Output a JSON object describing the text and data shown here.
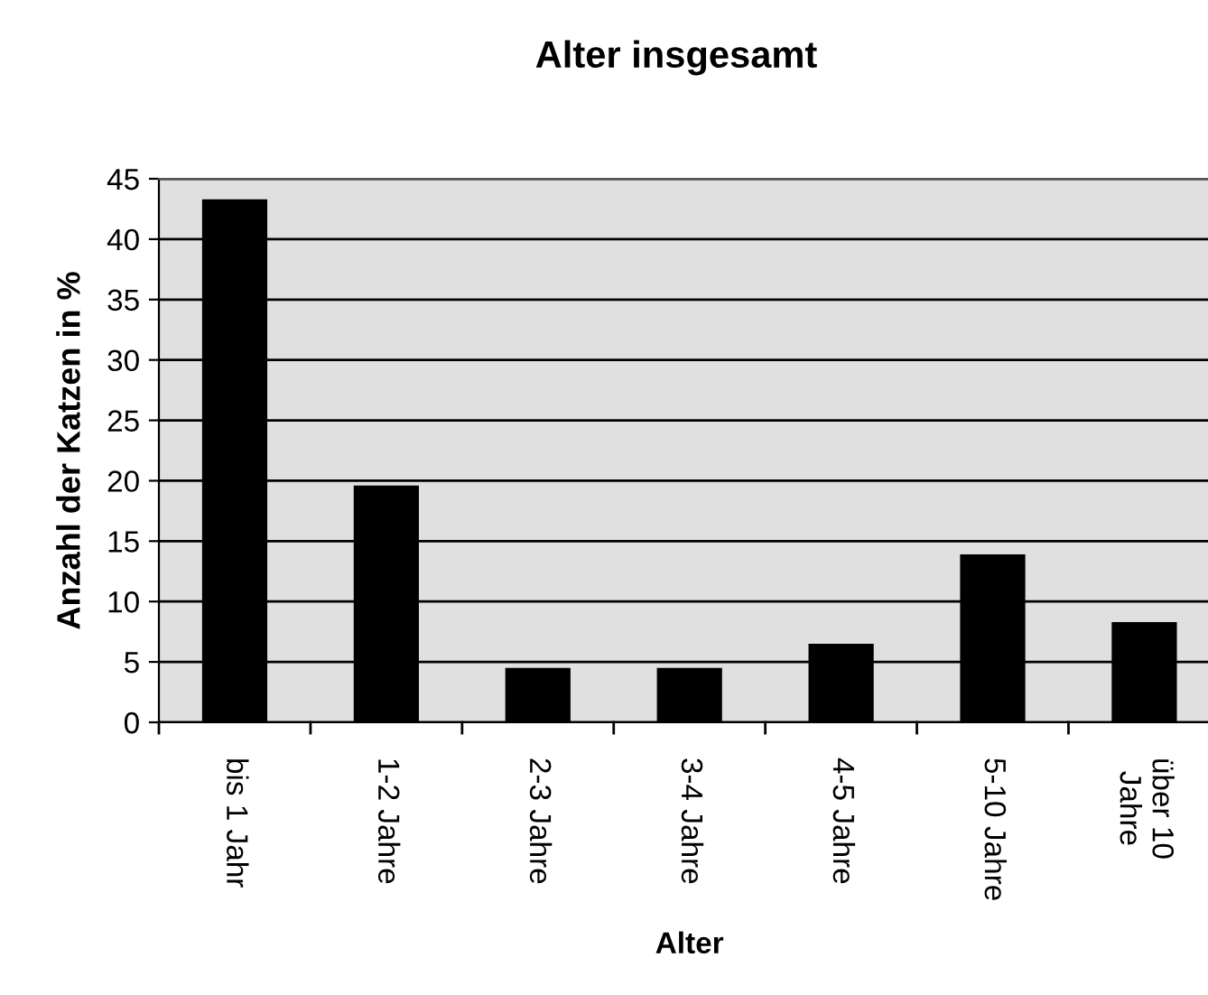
{
  "chart_data": {
    "type": "bar",
    "title": "Alter insgesamt",
    "xlabel": "Alter",
    "ylabel": "Anzahl der Katzen in %",
    "categories": [
      "bis 1 Jahr",
      "1-2 Jahre",
      "2-3 Jahre",
      "3-4 Jahre",
      "4-5 Jahre",
      "5-10 Jahre",
      "über 10\nJahre"
    ],
    "values": [
      43.3,
      19.6,
      4.5,
      4.5,
      6.5,
      13.9,
      8.3
    ],
    "color": "#000000",
    "ylim": [
      0,
      45
    ],
    "yticks": [
      0,
      5,
      10,
      15,
      20,
      25,
      30,
      35,
      40,
      45
    ],
    "grid": "y",
    "legend": false
  }
}
